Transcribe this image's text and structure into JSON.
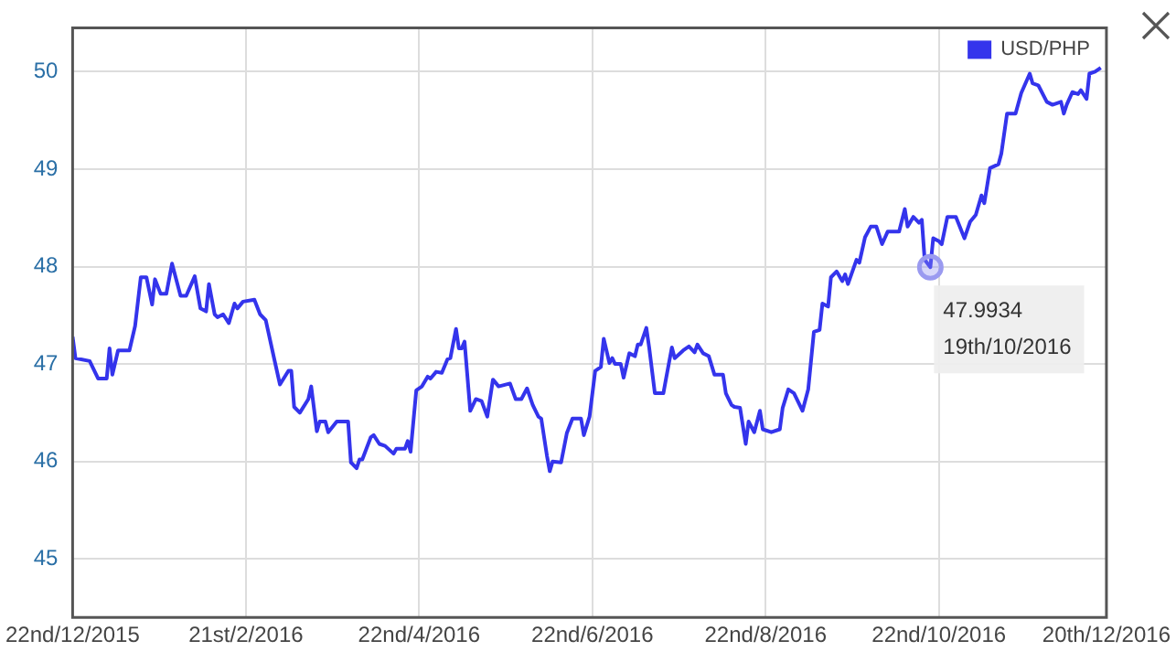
{
  "chart_data": {
    "type": "line",
    "xlim": [
      "2015-12-22",
      "2016-12-20"
    ],
    "xticks": [
      {
        "value": "2015-12-22",
        "label": "22nd/12/2015"
      },
      {
        "value": "2016-02-21",
        "label": "21st/2/2016"
      },
      {
        "value": "2016-04-22",
        "label": "22nd/4/2016"
      },
      {
        "value": "2016-06-22",
        "label": "22nd/6/2016"
      },
      {
        "value": "2016-08-22",
        "label": "22nd/8/2016"
      },
      {
        "value": "2016-10-22",
        "label": "22nd/10/2016"
      },
      {
        "value": "2016-12-20",
        "label": "20th/12/2016"
      }
    ],
    "ylim": [
      44.4,
      50.45
    ],
    "yticks": [
      45,
      46,
      47,
      48,
      49,
      50
    ],
    "grid": true,
    "legend": "top right",
    "marker": "none",
    "line_style": "solid",
    "annotations": [
      {
        "text": "47.9934",
        "x": "2016-10-19",
        "y": 47.9934
      },
      "19th/10/2016"
    ],
    "series": [
      {
        "name": "USD/PHP",
        "color": "#3434ec",
        "x": [
          "2015-12-22",
          "2015-12-23",
          "2015-12-28",
          "2015-12-31",
          "2016-01-03",
          "2016-01-04",
          "2016-01-05",
          "2016-01-07",
          "2016-01-11",
          "2016-01-13",
          "2016-01-15",
          "2016-01-17",
          "2016-01-19",
          "2016-01-20",
          "2016-01-22",
          "2016-01-24",
          "2016-01-26",
          "2016-01-29",
          "2016-01-31",
          "2016-02-03",
          "2016-02-05",
          "2016-02-07",
          "2016-02-08",
          "2016-02-10",
          "2016-02-11",
          "2016-02-13",
          "2016-02-15",
          "2016-02-17",
          "2016-02-18",
          "2016-02-20",
          "2016-02-24",
          "2016-02-26",
          "2016-02-28",
          "2016-03-02",
          "2016-03-04",
          "2016-03-07",
          "2016-03-08",
          "2016-03-09",
          "2016-03-11",
          "2016-03-14",
          "2016-03-15",
          "2016-03-17",
          "2016-03-18",
          "2016-03-20",
          "2016-03-21",
          "2016-03-24",
          "2016-03-28",
          "2016-03-29",
          "2016-03-31",
          "2016-04-01",
          "2016-04-02",
          "2016-04-05",
          "2016-04-06",
          "2016-04-08",
          "2016-04-10",
          "2016-04-13",
          "2016-04-14",
          "2016-04-17",
          "2016-04-18",
          "2016-04-19",
          "2016-04-21",
          "2016-04-23",
          "2016-04-25",
          "2016-04-26",
          "2016-04-28",
          "2016-04-30",
          "2016-05-02",
          "2016-05-03",
          "2016-05-05",
          "2016-05-06",
          "2016-05-07",
          "2016-05-08",
          "2016-05-10",
          "2016-05-12",
          "2016-05-14",
          "2016-05-16",
          "2016-05-18",
          "2016-05-20",
          "2016-05-24",
          "2016-05-26",
          "2016-05-28",
          "2016-05-30",
          "2016-06-01",
          "2016-06-03",
          "2016-06-04",
          "2016-06-06",
          "2016-06-07",
          "2016-06-08",
          "2016-06-11",
          "2016-06-13",
          "2016-06-15",
          "2016-06-18",
          "2016-06-19",
          "2016-06-21",
          "2016-06-23",
          "2016-06-25",
          "2016-06-26",
          "2016-06-28",
          "2016-06-29",
          "2016-06-30",
          "2016-07-02",
          "2016-07-03",
          "2016-07-05",
          "2016-07-07",
          "2016-07-08",
          "2016-07-09",
          "2016-07-11",
          "2016-07-12",
          "2016-07-14",
          "2016-07-17",
          "2016-07-18",
          "2016-07-20",
          "2016-07-21",
          "2016-07-24",
          "2016-07-26",
          "2016-07-28",
          "2016-07-29",
          "2016-07-31",
          "2016-08-02",
          "2016-08-04",
          "2016-08-07",
          "2016-08-08",
          "2016-08-10",
          "2016-08-11",
          "2016-08-13",
          "2016-08-15",
          "2016-08-16",
          "2016-08-18",
          "2016-08-20",
          "2016-08-21",
          "2016-08-24",
          "2016-08-27",
          "2016-08-28",
          "2016-08-30",
          "2016-09-01",
          "2016-09-04",
          "2016-09-06",
          "2016-09-08",
          "2016-09-10",
          "2016-09-11",
          "2016-09-13",
          "2016-09-14",
          "2016-09-16",
          "2016-09-18",
          "2016-09-19",
          "2016-09-20",
          "2016-09-23",
          "2016-09-24",
          "2016-09-26",
          "2016-09-28",
          "2016-09-30",
          "2016-10-02",
          "2016-10-04",
          "2016-10-08",
          "2016-10-10",
          "2016-10-11",
          "2016-10-13",
          "2016-10-15",
          "2016-10-16",
          "2016-10-17",
          "2016-10-19",
          "2016-10-20",
          "2016-10-22",
          "2016-10-23",
          "2016-10-25",
          "2016-10-28",
          "2016-10-31",
          "2016-11-02",
          "2016-11-04",
          "2016-11-06",
          "2016-11-07",
          "2016-11-09",
          "2016-11-12",
          "2016-11-13",
          "2016-11-15",
          "2016-11-18",
          "2016-11-20",
          "2016-11-23",
          "2016-11-24",
          "2016-11-26",
          "2016-11-29",
          "2016-12-01",
          "2016-12-04",
          "2016-12-05",
          "2016-12-06",
          "2016-12-08",
          "2016-12-10",
          "2016-12-11",
          "2016-12-13",
          "2016-12-14",
          "2016-12-16",
          "2016-12-18"
        ],
        "values": [
          47.28,
          47.06,
          47.03,
          46.85,
          46.85,
          47.16,
          46.89,
          47.14,
          47.14,
          47.39,
          47.89,
          47.89,
          47.61,
          47.87,
          47.72,
          47.72,
          48.03,
          47.7,
          47.7,
          47.9,
          47.57,
          47.54,
          47.82,
          47.51,
          47.48,
          47.51,
          47.42,
          47.62,
          47.57,
          47.64,
          47.66,
          47.51,
          47.45,
          47.05,
          46.79,
          46.93,
          46.93,
          46.56,
          46.5,
          46.64,
          46.77,
          46.31,
          46.41,
          46.41,
          46.3,
          46.41,
          46.41,
          45.99,
          45.93,
          46.02,
          46.02,
          46.25,
          46.27,
          46.18,
          46.16,
          46.08,
          46.13,
          46.13,
          46.21,
          46.1,
          46.73,
          46.77,
          46.87,
          46.85,
          46.92,
          46.91,
          47.05,
          47.06,
          47.36,
          47.16,
          47.16,
          47.23,
          46.52,
          46.64,
          46.62,
          46.46,
          46.84,
          46.77,
          46.8,
          46.64,
          46.64,
          46.75,
          46.58,
          46.46,
          46.44,
          46.06,
          45.9,
          46.0,
          45.99,
          46.29,
          46.44,
          46.44,
          46.27,
          46.46,
          46.93,
          46.97,
          47.26,
          47.01,
          47.06,
          47.0,
          47.0,
          46.86,
          47.11,
          47.08,
          47.2,
          47.2,
          47.37,
          47.17,
          46.7,
          46.7,
          46.86,
          47.17,
          47.06,
          47.14,
          47.18,
          47.12,
          47.2,
          47.11,
          47.08,
          46.89,
          46.89,
          46.7,
          46.58,
          46.56,
          46.55,
          46.18,
          46.41,
          46.3,
          46.52,
          46.33,
          46.3,
          46.33,
          46.55,
          46.74,
          46.7,
          46.52,
          46.74,
          47.33,
          47.35,
          47.62,
          47.59,
          47.89,
          47.95,
          47.85,
          47.92,
          47.82,
          48.07,
          48.04,
          48.3,
          48.41,
          48.41,
          48.23,
          48.36,
          48.36,
          48.59,
          48.41,
          48.51,
          48.45,
          48.48,
          48.07,
          47.9934,
          48.29,
          48.26,
          48.23,
          48.51,
          48.51,
          48.29,
          48.46,
          48.53,
          48.73,
          48.65,
          49.01,
          49.05,
          49.16,
          49.57,
          49.57,
          49.78,
          49.98,
          49.88,
          49.86,
          49.69,
          49.66,
          49.69,
          49.57,
          49.66,
          49.79,
          49.77,
          49.81,
          49.72,
          49.98,
          50.0,
          50.04
        ]
      }
    ]
  }
}
